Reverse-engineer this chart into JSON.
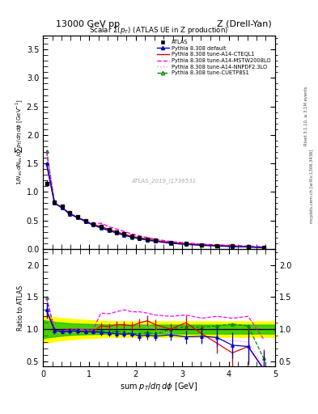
{
  "title_top": "13000 GeV pp",
  "title_right": "Z (Drell-Yan)",
  "plot_title": "Scalar Σ(p_T) (ATLAS UE in Z production)",
  "watermark": "ATLAS_2019_I1736531",
  "right_label1": "Rivet 3.1.10, ≥ 3.1M events",
  "right_label2": "mcplots.cern.ch [arXiv:1306.3436]",
  "xlim": [
    0,
    5.0
  ],
  "ylim_main": [
    0,
    3.75
  ],
  "ylim_ratio": [
    0.42,
    2.25
  ],
  "atlas_x": [
    0.08,
    0.25,
    0.42,
    0.58,
    0.75,
    0.92,
    1.08,
    1.25,
    1.42,
    1.58,
    1.75,
    1.92,
    2.08,
    2.25,
    2.42,
    2.75,
    3.08,
    3.42,
    3.75,
    4.08,
    4.42,
    4.75
  ],
  "atlas_y": [
    1.15,
    0.82,
    0.75,
    0.63,
    0.57,
    0.5,
    0.44,
    0.39,
    0.34,
    0.3,
    0.26,
    0.22,
    0.2,
    0.17,
    0.15,
    0.11,
    0.09,
    0.07,
    0.06,
    0.05,
    0.04,
    0.03
  ],
  "atlas_yerr": [
    0.05,
    0.03,
    0.03,
    0.02,
    0.02,
    0.02,
    0.015,
    0.012,
    0.01,
    0.009,
    0.008,
    0.007,
    0.006,
    0.006,
    0.005,
    0.004,
    0.003,
    0.003,
    0.003,
    0.002,
    0.002,
    0.002
  ],
  "default_x": [
    0.08,
    0.25,
    0.42,
    0.58,
    0.75,
    0.92,
    1.08,
    1.25,
    1.42,
    1.58,
    1.75,
    1.92,
    2.08,
    2.25,
    2.42,
    2.75,
    3.08,
    3.42,
    3.75,
    4.08,
    4.42,
    4.75
  ],
  "default_y": [
    1.5,
    0.8,
    0.72,
    0.61,
    0.55,
    0.48,
    0.42,
    0.37,
    0.32,
    0.28,
    0.24,
    0.205,
    0.178,
    0.155,
    0.133,
    0.1,
    0.079,
    0.062,
    0.052,
    0.042,
    0.033,
    0.024
  ],
  "cteq_x": [
    0.08,
    0.25,
    0.42,
    0.58,
    0.75,
    0.92,
    1.08,
    1.25,
    1.42,
    1.58,
    1.75,
    1.92,
    2.08,
    2.25,
    2.42,
    2.75,
    3.08,
    3.42,
    3.75,
    4.08,
    4.42,
    4.75
  ],
  "cteq_y": [
    1.48,
    0.8,
    0.72,
    0.61,
    0.55,
    0.48,
    0.42,
    0.395,
    0.34,
    0.303,
    0.258,
    0.218,
    0.195,
    0.175,
    0.148,
    0.112,
    0.092,
    0.072,
    0.06,
    0.048,
    0.038,
    0.024
  ],
  "mstw_x": [
    0.08,
    0.25,
    0.42,
    0.58,
    0.75,
    0.92,
    1.08,
    1.25,
    1.42,
    1.58,
    1.75,
    1.92,
    2.08,
    2.25,
    2.42,
    2.75,
    3.08,
    3.42,
    3.75,
    4.08,
    4.42,
    4.75
  ],
  "mstw_y": [
    1.7,
    0.8,
    0.73,
    0.62,
    0.56,
    0.49,
    0.43,
    0.45,
    0.39,
    0.35,
    0.305,
    0.26,
    0.228,
    0.198,
    0.17,
    0.128,
    0.106,
    0.082,
    0.072,
    0.06,
    0.05,
    0.035
  ],
  "nnpdf_x": [
    0.08,
    0.25,
    0.42,
    0.58,
    0.75,
    0.92,
    1.08,
    1.25,
    1.42,
    1.58,
    1.75,
    1.92,
    2.08,
    2.25,
    2.42,
    2.75,
    3.08,
    3.42,
    3.75,
    4.08,
    4.42,
    4.75
  ],
  "nnpdf_y": [
    1.48,
    0.8,
    0.72,
    0.61,
    0.55,
    0.48,
    0.42,
    0.385,
    0.33,
    0.295,
    0.25,
    0.21,
    0.188,
    0.165,
    0.14,
    0.104,
    0.085,
    0.066,
    0.055,
    0.044,
    0.034,
    0.024
  ],
  "cuetp_x": [
    0.08,
    0.25,
    0.42,
    0.58,
    0.75,
    0.92,
    1.08,
    1.25,
    1.42,
    1.58,
    1.75,
    1.92,
    2.08,
    2.25,
    2.42,
    2.75,
    3.08,
    3.42,
    3.75,
    4.08,
    4.42,
    4.75
  ],
  "cuetp_y": [
    1.72,
    0.8,
    0.72,
    0.61,
    0.55,
    0.48,
    0.42,
    0.37,
    0.32,
    0.282,
    0.24,
    0.2,
    0.178,
    0.155,
    0.133,
    0.1,
    0.082,
    0.064,
    0.054,
    0.044,
    0.035,
    0.024
  ],
  "ratio_x": [
    0.08,
    0.25,
    0.42,
    0.58,
    0.75,
    0.92,
    1.08,
    1.25,
    1.42,
    1.58,
    1.75,
    1.92,
    2.08,
    2.25,
    2.42,
    2.75,
    3.08,
    3.42,
    3.75,
    4.08,
    4.42,
    4.75
  ],
  "ratio_default_y": [
    1.3,
    0.98,
    0.96,
    0.97,
    0.97,
    0.96,
    0.96,
    0.95,
    0.94,
    0.93,
    0.92,
    0.93,
    0.89,
    0.91,
    0.89,
    0.91,
    0.88,
    0.89,
    0.87,
    0.75,
    0.73,
    0.38
  ],
  "ratio_default_yerr": [
    0.12,
    0.05,
    0.04,
    0.04,
    0.04,
    0.04,
    0.04,
    0.05,
    0.05,
    0.05,
    0.05,
    0.06,
    0.06,
    0.07,
    0.07,
    0.08,
    0.1,
    0.12,
    0.15,
    0.2,
    0.25,
    0.28
  ],
  "ratio_cteq_y": [
    1.28,
    0.98,
    0.96,
    0.97,
    0.97,
    0.96,
    0.96,
    1.05,
    1.04,
    1.07,
    1.07,
    1.05,
    1.1,
    1.13,
    1.07,
    1.0,
    1.1,
    0.93,
    0.78,
    0.63,
    0.73,
    0.38
  ],
  "ratio_cteq_yerr": [
    0.12,
    0.05,
    0.04,
    0.04,
    0.04,
    0.04,
    0.04,
    0.05,
    0.05,
    0.06,
    0.06,
    0.06,
    0.07,
    0.08,
    0.08,
    0.09,
    0.11,
    0.13,
    0.16,
    0.22,
    0.28,
    0.3
  ],
  "ratio_mstw_y": [
    1.48,
    0.98,
    0.97,
    1.0,
    1.0,
    0.99,
    0.99,
    1.25,
    1.24,
    1.27,
    1.3,
    1.27,
    1.27,
    1.25,
    1.22,
    1.2,
    1.22,
    1.17,
    1.2,
    1.17,
    1.2,
    0.85
  ],
  "ratio_nnpdf_y": [
    1.28,
    0.98,
    0.96,
    0.97,
    0.97,
    0.97,
    0.96,
    1.05,
    1.04,
    1.07,
    1.07,
    1.05,
    1.08,
    1.07,
    1.0,
    0.92,
    0.88,
    0.87,
    0.83,
    0.82,
    0.8,
    0.43
  ],
  "ratio_cuetp_y": [
    1.49,
    0.98,
    0.97,
    0.97,
    0.97,
    0.96,
    0.96,
    0.97,
    0.95,
    0.97,
    0.95,
    0.93,
    0.93,
    0.95,
    0.92,
    1.0,
    1.04,
    1.03,
    1.05,
    1.08,
    1.05,
    0.55
  ],
  "yellow_band_x": [
    0.0,
    0.3,
    0.6,
    1.0,
    1.5,
    2.0,
    2.5,
    3.0,
    3.5,
    4.0,
    4.5,
    5.0
  ],
  "yellow_band_lo": [
    0.78,
    0.82,
    0.84,
    0.86,
    0.88,
    0.88,
    0.88,
    0.88,
    0.88,
    0.88,
    0.88,
    0.88
  ],
  "yellow_band_hi": [
    1.22,
    1.18,
    1.16,
    1.14,
    1.12,
    1.12,
    1.12,
    1.12,
    1.12,
    1.12,
    1.12,
    1.12
  ],
  "green_band_lo": [
    0.86,
    0.89,
    0.91,
    0.92,
    0.93,
    0.93,
    0.93,
    0.93,
    0.93,
    0.93,
    0.93,
    0.93
  ],
  "green_band_hi": [
    1.14,
    1.11,
    1.09,
    1.08,
    1.07,
    1.07,
    1.07,
    1.07,
    1.07,
    1.07,
    1.07,
    1.07
  ],
  "color_default": "#0000cc",
  "color_cteq": "#dd0000",
  "color_mstw": "#ff00ff",
  "color_nnpdf": "#ff88ff",
  "color_cuetp": "#008800",
  "color_atlas": "#000000",
  "color_yellow": "#ffff00",
  "color_green": "#00bb00",
  "yticks_main": [
    0.0,
    0.5,
    1.0,
    1.5,
    2.0,
    2.5,
    3.0,
    3.5
  ],
  "yticks_ratio": [
    0.5,
    1.0,
    1.5,
    2.0
  ]
}
